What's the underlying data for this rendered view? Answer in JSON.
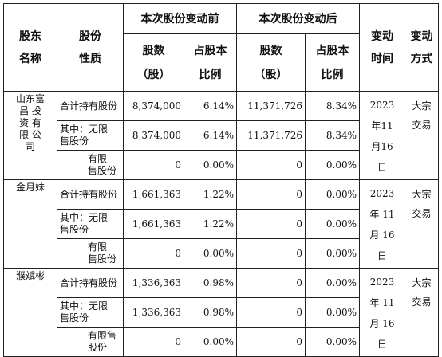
{
  "headers": {
    "holder_name": [
      "股东",
      "名称"
    ],
    "share_nature": [
      "股份",
      "性质"
    ],
    "before_change": "本次股份变动前",
    "after_change": "本次股份变动后",
    "share_count": [
      "股数",
      "（股）"
    ],
    "share_ratio": [
      "占股本",
      "比例"
    ],
    "change_time": [
      "变动",
      "时间"
    ],
    "change_method": [
      "变动",
      "方式"
    ]
  },
  "holders": [
    {
      "name": "山东富昌投资有限公司",
      "name_lines": [
        "山东富",
        "昌 投",
        "资 有",
        "限 公",
        "司"
      ],
      "date_lines": [
        "2023",
        "年11",
        "月16",
        "日"
      ],
      "method_lines": [
        "大宗",
        "交易"
      ],
      "rows": [
        {
          "nature_lines": [
            "合计持有股份"
          ],
          "before_shares": "8,374,000",
          "before_ratio": "6.14%",
          "after_shares": "11,371,726",
          "after_ratio": "8.34%"
        },
        {
          "nature_lines": [
            "其中：无限",
            "售股份"
          ],
          "before_shares": "8,374,000",
          "before_ratio": "6.14%",
          "after_shares": "11,371,726",
          "after_ratio": "8.34%"
        },
        {
          "nature_lines": [
            "有限",
            "售股份"
          ],
          "before_shares": "0",
          "before_ratio": "0.00%",
          "after_shares": "0",
          "after_ratio": "0.00%"
        }
      ]
    },
    {
      "name": "金月妹",
      "name_lines": [
        "金月妹"
      ],
      "date_lines": [
        "2023",
        "年 11",
        "月 16",
        "日"
      ],
      "method_lines": [
        "大宗",
        "交易"
      ],
      "rows": [
        {
          "nature_lines": [
            "合计持有股份"
          ],
          "before_shares": "1,661,363",
          "before_ratio": "1.22%",
          "after_shares": "0",
          "after_ratio": "0.00%"
        },
        {
          "nature_lines": [
            "其中：无限",
            "售股份"
          ],
          "before_shares": "1,661,363",
          "before_ratio": "1.22%",
          "after_shares": "0",
          "after_ratio": "0.00%"
        },
        {
          "nature_lines": [
            "有限",
            "售股份"
          ],
          "before_shares": "0",
          "before_ratio": "0.00%",
          "after_shares": "0",
          "after_ratio": "0.00%"
        }
      ]
    },
    {
      "name": "濮斌彬",
      "name_lines": [
        "濮斌彬"
      ],
      "date_lines": [
        "2023",
        "年 11",
        "月 16",
        "日"
      ],
      "method_lines": [
        "大宗",
        "交易"
      ],
      "rows": [
        {
          "nature_lines": [
            "合计持有股份"
          ],
          "before_shares": "1,336,363",
          "before_ratio": "0.98%",
          "after_shares": "0",
          "after_ratio": "0.00%"
        },
        {
          "nature_lines": [
            "其中：无限",
            "售股份"
          ],
          "before_shares": "1,336,363",
          "before_ratio": "0.98%",
          "after_shares": "0",
          "after_ratio": "0.00%"
        },
        {
          "nature_lines": [
            "有限售",
            "股份"
          ],
          "before_shares": "0",
          "before_ratio": "0.00%",
          "after_shares": "0",
          "after_ratio": "0.00%"
        }
      ]
    }
  ]
}
